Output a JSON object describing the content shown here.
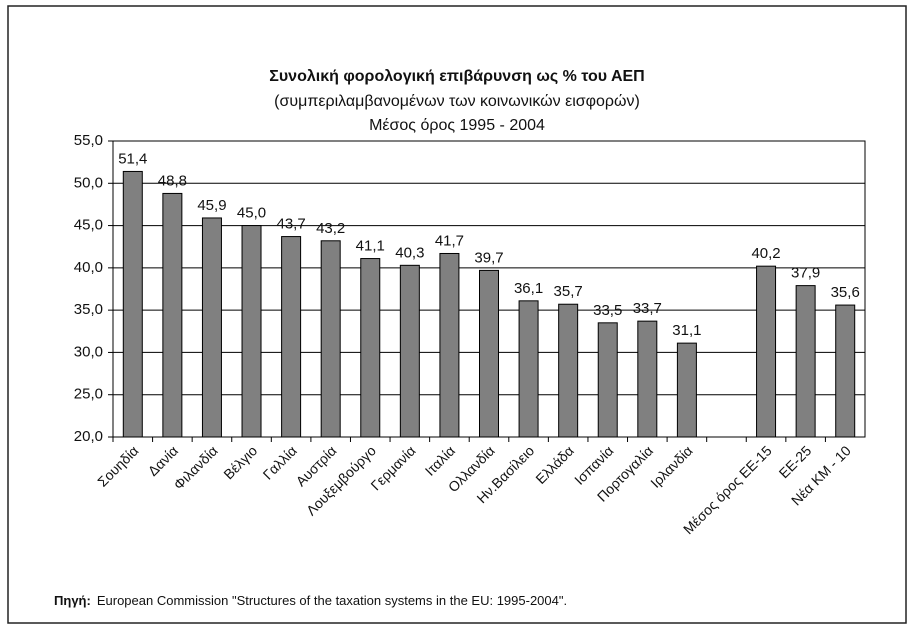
{
  "chart_data": {
    "type": "bar",
    "title": "Συνολική  φορολογική επιβάρυνση  ως % του ΑΕΠ",
    "subtitle": "(συμπεριλαμβανομένων των κοινωνικών εισφορών)",
    "subtitle2": "Μέσος όρος  1995 - 2004",
    "categories": [
      "Σουηδία",
      "Δανία",
      "Φιλανδία",
      "Βέλγιο",
      "Γαλλία",
      "Αυστρία",
      "Λουξεμβούργο",
      "Γερμανία",
      "Ιταλία",
      "Ολλανδία",
      "Ην.Βασίλειο",
      "Ελλάδα",
      "Ισπανία",
      "Πορτογαλία",
      "Ιρλανδία",
      null,
      "Μέσος όρος ΕΕ-15",
      "ΕΕ-25",
      "Νέα ΚΜ - 10"
    ],
    "values": [
      51.4,
      48.8,
      45.9,
      45.0,
      43.7,
      43.2,
      41.1,
      40.3,
      41.7,
      39.7,
      36.1,
      35.7,
      33.5,
      33.7,
      31.1,
      null,
      40.2,
      37.9,
      35.6
    ],
    "value_labels": [
      "51,4",
      "48,8",
      "45,9",
      "45,0",
      "43,7",
      "43,2",
      "41,1",
      "40,3",
      "41,7",
      "39,7",
      "36,1",
      "35,7",
      "33,5",
      "33,7",
      "31,1",
      null,
      "40,2",
      "37,9",
      "35,6"
    ],
    "color": "#808080",
    "ylim": [
      20,
      55
    ],
    "yticks": [
      {
        "value": 20,
        "label": "20,0"
      },
      {
        "value": 25,
        "label": "25,0"
      },
      {
        "value": 30,
        "label": "30,0"
      },
      {
        "value": 35,
        "label": "35,0"
      },
      {
        "value": 40,
        "label": "40,0"
      },
      {
        "value": 45,
        "label": "45,0"
      },
      {
        "value": 50,
        "label": "50,0"
      },
      {
        "value": 55,
        "label": "55,0"
      }
    ],
    "grid": true,
    "source_label": "Πηγή:",
    "source": "European Commission \"Structures of the taxation systems in the EU: 1995-2004\"."
  }
}
